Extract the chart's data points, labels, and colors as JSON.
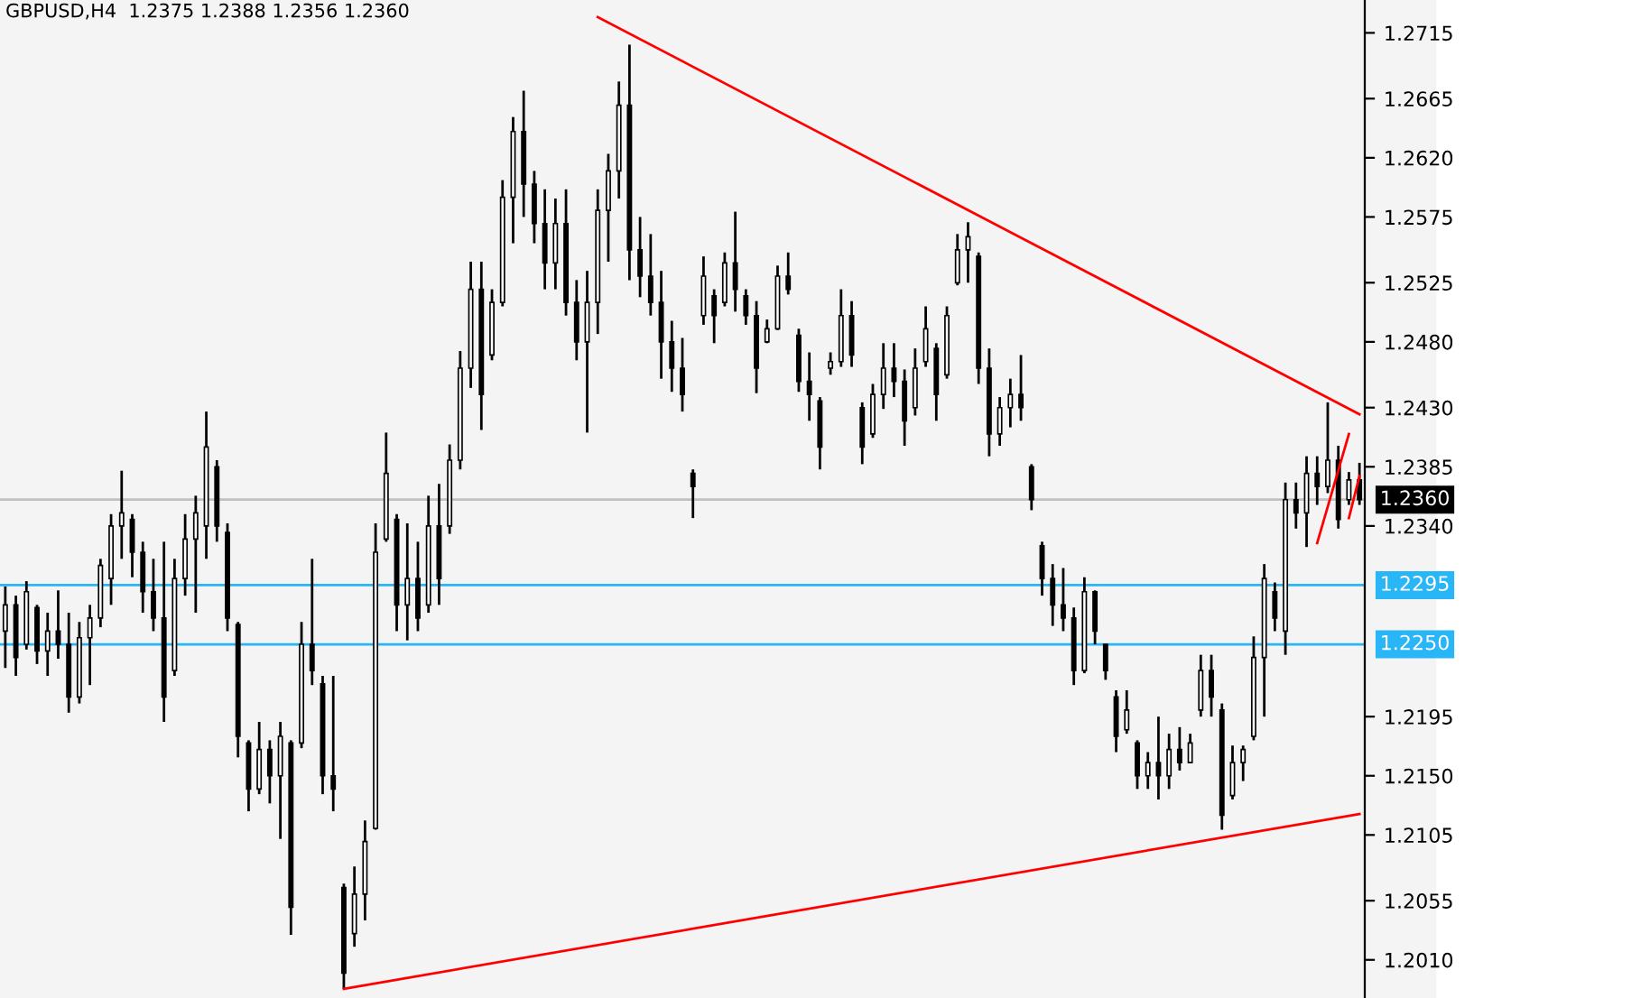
{
  "chart_data": {
    "type": "candlestick",
    "title": "GBPUSD,H4  1.2375 1.2388 1.2356 1.2360",
    "categories": [
      null,
      null,
      null,
      null,
      null,
      null,
      null,
      null,
      null,
      null,
      null,
      null,
      null,
      null,
      null,
      null,
      null,
      null,
      null,
      null,
      null,
      null,
      null,
      null,
      null,
      null,
      null,
      null,
      null,
      null,
      null,
      null,
      null,
      null,
      null,
      null,
      null,
      null,
      null,
      null,
      null,
      null,
      null,
      null,
      null,
      null,
      null,
      null,
      null,
      null,
      null,
      null,
      null,
      null,
      null,
      null,
      null,
      null,
      null,
      null,
      null,
      null,
      null,
      null,
      null,
      null,
      null,
      null,
      null,
      null,
      null,
      null,
      null,
      null,
      null,
      null,
      null,
      null,
      null,
      null,
      null,
      null,
      null,
      null,
      null,
      null,
      null,
      null,
      null,
      null,
      null,
      null,
      null,
      null,
      null,
      null,
      null,
      null,
      null,
      null,
      null,
      null,
      null,
      null,
      null,
      null,
      null,
      null,
      null,
      null,
      null,
      null,
      null,
      null,
      null,
      null,
      null,
      null,
      null,
      null,
      null,
      null,
      null,
      null,
      null,
      null,
      null,
      null,
      null
    ],
    "color": "#000000",
    "ohlc": [
      [
        1.226,
        1.2294,
        1.2232,
        1.228
      ],
      [
        1.228,
        1.2287,
        1.2226,
        1.224
      ],
      [
        1.225,
        1.2298,
        1.2246,
        1.229
      ],
      [
        1.2278,
        1.228,
        1.2235,
        1.2245
      ],
      [
        1.2245,
        1.2274,
        1.2226,
        1.226
      ],
      [
        1.226,
        1.2291,
        1.2239,
        1.225
      ],
      [
        1.225,
        1.2274,
        1.2198,
        1.221
      ],
      [
        1.221,
        1.2267,
        1.2205,
        1.2255
      ],
      [
        1.2255,
        1.228,
        1.2219,
        1.227
      ],
      [
        1.227,
        1.2315,
        1.2263,
        1.231
      ],
      [
        1.23,
        1.2349,
        1.228,
        1.234
      ],
      [
        1.234,
        1.2382,
        1.2315,
        1.235
      ],
      [
        1.2345,
        1.2349,
        1.2301,
        1.232
      ],
      [
        1.232,
        1.2328,
        1.2274,
        1.229
      ],
      [
        1.229,
        1.2315,
        1.226,
        1.227
      ],
      [
        1.227,
        1.2328,
        1.2191,
        1.221
      ],
      [
        1.223,
        1.2315,
        1.2226,
        1.23
      ],
      [
        1.23,
        1.2349,
        1.2287,
        1.233
      ],
      [
        1.233,
        1.2363,
        1.2274,
        1.235
      ],
      [
        1.234,
        1.2427,
        1.2315,
        1.24
      ],
      [
        1.2385,
        1.239,
        1.2328,
        1.234
      ],
      [
        1.2335,
        1.2342,
        1.226,
        1.227
      ],
      [
        1.2265,
        1.2267,
        1.2164,
        1.218
      ],
      [
        1.2175,
        1.2177,
        1.2123,
        1.214
      ],
      [
        1.214,
        1.2191,
        1.2136,
        1.217
      ],
      [
        1.217,
        1.2177,
        1.2129,
        1.215
      ],
      [
        1.215,
        1.2191,
        1.2102,
        1.218
      ],
      [
        1.2175,
        1.2177,
        1.2029,
        1.205
      ],
      [
        1.2175,
        1.2267,
        1.2171,
        1.225
      ],
      [
        1.225,
        1.2315,
        1.2219,
        1.223
      ],
      [
        1.222,
        1.2226,
        1.2136,
        1.215
      ],
      [
        1.215,
        1.2226,
        1.2123,
        1.214
      ],
      [
        1.2065,
        1.2068,
        1.1988,
        1.2
      ],
      [
        1.203,
        1.2081,
        1.202,
        1.206
      ],
      [
        1.206,
        1.2116,
        1.204,
        1.21
      ],
      [
        1.211,
        1.2342,
        1.2109,
        1.232
      ],
      [
        1.233,
        1.2411,
        1.2328,
        1.238
      ],
      [
        1.2345,
        1.2349,
        1.226,
        1.228
      ],
      [
        1.228,
        1.2342,
        1.2253,
        1.23
      ],
      [
        1.23,
        1.2328,
        1.226,
        1.227
      ],
      [
        1.228,
        1.2363,
        1.2274,
        1.234
      ],
      [
        1.234,
        1.2372,
        1.228,
        1.23
      ],
      [
        1.234,
        1.2402,
        1.2334,
        1.239
      ],
      [
        1.239,
        1.2473,
        1.2383,
        1.246
      ],
      [
        1.246,
        1.2541,
        1.2445,
        1.252
      ],
      [
        1.252,
        1.2541,
        1.2413,
        1.244
      ],
      [
        1.247,
        1.252,
        1.2466,
        1.251
      ],
      [
        1.251,
        1.2603,
        1.2507,
        1.259
      ],
      [
        1.259,
        1.2651,
        1.2555,
        1.264
      ],
      [
        1.264,
        1.2671,
        1.2575,
        1.26
      ],
      [
        1.26,
        1.261,
        1.2555,
        1.257
      ],
      [
        1.257,
        1.2596,
        1.252,
        1.254
      ],
      [
        1.254,
        1.2589,
        1.252,
        1.257
      ],
      [
        1.257,
        1.2596,
        1.25,
        1.251
      ],
      [
        1.251,
        1.2527,
        1.2466,
        1.248
      ],
      [
        1.248,
        1.2534,
        1.2411,
        1.251
      ],
      [
        1.251,
        1.2596,
        1.2486,
        1.258
      ],
      [
        1.258,
        1.2623,
        1.2541,
        1.261
      ],
      [
        1.261,
        1.2678,
        1.2589,
        1.266
      ],
      [
        1.266,
        1.2706,
        1.2527,
        1.255
      ],
      [
        1.255,
        1.2575,
        1.2514,
        1.253
      ],
      [
        1.253,
        1.2562,
        1.25,
        1.251
      ],
      [
        1.251,
        1.2534,
        1.2452,
        1.248
      ],
      [
        1.248,
        1.2496,
        1.2442,
        1.246
      ],
      [
        1.246,
        1.2483,
        1.2427,
        1.244
      ],
      [
        1.238,
        1.2383,
        1.2346,
        1.237
      ],
      [
        1.25,
        1.2545,
        1.2493,
        1.253
      ],
      [
        1.2515,
        1.252,
        1.2479,
        1.25
      ],
      [
        1.251,
        1.2548,
        1.2507,
        1.254
      ],
      [
        1.254,
        1.2579,
        1.2503,
        1.252
      ],
      [
        1.2515,
        1.252,
        1.2493,
        1.25
      ],
      [
        1.25,
        1.2511,
        1.2441,
        1.246
      ],
      [
        1.248,
        1.2497,
        1.2479,
        1.249
      ],
      [
        1.249,
        1.2538,
        1.2489,
        1.253
      ],
      [
        1.253,
        1.2548,
        1.2516,
        1.252
      ],
      [
        1.2485,
        1.249,
        1.2442,
        1.245
      ],
      [
        1.245,
        1.2472,
        1.242,
        1.244
      ],
      [
        1.2435,
        1.2438,
        1.2383,
        1.24
      ],
      [
        1.246,
        1.2472,
        1.2455,
        1.2465
      ],
      [
        1.2465,
        1.252,
        1.2461,
        1.25
      ],
      [
        1.25,
        1.2511,
        1.2461,
        1.247
      ],
      [
        1.243,
        1.2434,
        1.2387,
        1.24
      ],
      [
        1.241,
        1.2448,
        1.2407,
        1.244
      ],
      [
        1.244,
        1.2479,
        1.2429,
        1.246
      ],
      [
        1.246,
        1.2479,
        1.2438,
        1.245
      ],
      [
        1.245,
        1.2459,
        1.2401,
        1.242
      ],
      [
        1.243,
        1.2475,
        1.2424,
        1.246
      ],
      [
        1.2465,
        1.2507,
        1.2461,
        1.249
      ],
      [
        1.2475,
        1.2479,
        1.242,
        1.244
      ],
      [
        1.2455,
        1.2507,
        1.2452,
        1.25
      ],
      [
        1.2525,
        1.2562,
        1.2523,
        1.255
      ],
      [
        1.255,
        1.2571,
        1.2525,
        1.256
      ],
      [
        1.2545,
        1.2548,
        1.2448,
        1.246
      ],
      [
        1.246,
        1.2475,
        1.2393,
        1.241
      ],
      [
        1.241,
        1.2438,
        1.2401,
        1.243
      ],
      [
        1.243,
        1.2452,
        1.2415,
        1.244
      ],
      [
        1.244,
        1.247,
        1.242,
        1.243
      ],
      [
        1.2385,
        1.2387,
        1.2352,
        1.236
      ],
      [
        1.2325,
        1.2328,
        1.2287,
        1.23
      ],
      [
        1.23,
        1.2311,
        1.2264,
        1.228
      ],
      [
        1.228,
        1.2308,
        1.226,
        1.227
      ],
      [
        1.227,
        1.2278,
        1.2219,
        1.223
      ],
      [
        1.223,
        1.2301,
        1.2228,
        1.229
      ],
      [
        1.229,
        1.2291,
        1.225,
        1.226
      ],
      [
        1.225,
        1.225,
        1.2223,
        1.223
      ],
      [
        1.221,
        1.2215,
        1.2168,
        1.218
      ],
      [
        1.2185,
        1.2215,
        1.2182,
        1.22
      ],
      [
        1.2175,
        1.2177,
        1.214,
        1.215
      ],
      [
        1.215,
        1.2168,
        1.214,
        1.216
      ],
      [
        1.216,
        1.2195,
        1.2132,
        1.215
      ],
      [
        1.215,
        1.2182,
        1.214,
        1.217
      ],
      [
        1.217,
        1.2187,
        1.2154,
        1.216
      ],
      [
        1.216,
        1.2182,
        1.216,
        1.2175
      ],
      [
        1.22,
        1.2242,
        1.2195,
        1.223
      ],
      [
        1.223,
        1.2242,
        1.2195,
        1.221
      ],
      [
        1.22,
        1.2205,
        1.2109,
        1.212
      ],
      [
        1.2135,
        1.2173,
        1.2132,
        1.216
      ],
      [
        1.216,
        1.2173,
        1.2146,
        1.217
      ],
      [
        1.218,
        1.2256,
        1.2177,
        1.224
      ],
      [
        1.224,
        1.2311,
        1.2195,
        1.23
      ],
      [
        1.229,
        1.2297,
        1.226,
        1.227
      ],
      [
        1.226,
        1.2373,
        1.2242,
        1.236
      ],
      [
        1.236,
        1.2373,
        1.2338,
        1.235
      ],
      [
        1.235,
        1.2393,
        1.2324,
        1.238
      ],
      [
        1.238,
        1.2393,
        1.2356,
        1.237
      ],
      [
        1.237,
        1.2434,
        1.2365,
        1.239
      ],
      [
        1.239,
        1.2401,
        1.2338,
        1.2345
      ],
      [
        1.236,
        1.2381,
        1.2356,
        1.2375
      ],
      [
        1.2375,
        1.2388,
        1.2356,
        1.236
      ]
    ],
    "series": [
      {
        "type": "line",
        "color": "#ff0000",
        "values": [
          null,
          null,
          null,
          null,
          null,
          null,
          null,
          null,
          null,
          null,
          null,
          null,
          null,
          null,
          null,
          null,
          null,
          null,
          null,
          null,
          null,
          null,
          null,
          null,
          null,
          null,
          null,
          null,
          null,
          null,
          null,
          null,
          null,
          null,
          null,
          null,
          null,
          null,
          null,
          null,
          null,
          null,
          null,
          null,
          null,
          null,
          null,
          null,
          null,
          null,
          null,
          null,
          null,
          null,
          null,
          null,
          1.2727,
          null,
          null,
          null,
          null,
          null,
          null,
          null,
          null,
          null,
          null,
          null,
          null,
          null,
          null,
          null,
          null,
          null,
          null,
          null,
          null,
          null,
          null,
          null,
          null,
          null,
          null,
          null,
          null,
          null,
          null,
          null,
          null,
          null,
          null,
          null,
          null,
          null,
          null,
          null,
          null,
          null,
          null,
          null,
          null,
          null,
          null,
          null,
          null,
          null,
          null,
          null,
          null,
          null,
          null,
          null,
          null,
          null,
          null,
          null,
          null,
          null,
          null,
          null,
          null,
          null,
          null,
          null,
          null,
          null,
          null,
          null,
          1.2425
        ]
      },
      {
        "type": "line",
        "color": "#ff0000",
        "values": [
          null,
          null,
          null,
          null,
          null,
          null,
          null,
          null,
          null,
          null,
          null,
          null,
          null,
          null,
          null,
          null,
          null,
          null,
          null,
          null,
          null,
          null,
          null,
          null,
          null,
          null,
          null,
          null,
          null,
          null,
          null,
          null,
          1.1988,
          null,
          null,
          null,
          null,
          null,
          null,
          null,
          null,
          null,
          null,
          null,
          null,
          null,
          null,
          null,
          null,
          null,
          null,
          null,
          null,
          null,
          null,
          null,
          null,
          null,
          null,
          null,
          null,
          null,
          null,
          null,
          null,
          null,
          null,
          null,
          null,
          null,
          null,
          null,
          null,
          null,
          null,
          null,
          null,
          null,
          null,
          null,
          null,
          null,
          null,
          null,
          null,
          null,
          null,
          null,
          null,
          null,
          null,
          null,
          null,
          null,
          null,
          null,
          null,
          null,
          null,
          null,
          null,
          null,
          null,
          null,
          null,
          null,
          null,
          null,
          null,
          null,
          null,
          null,
          null,
          null,
          null,
          null,
          null,
          null,
          null,
          null,
          null,
          null,
          null,
          null,
          null,
          null,
          null,
          null,
          1.2121
        ]
      },
      {
        "type": "line",
        "color": "#ff0000",
        "values": [
          null,
          null,
          null,
          null,
          null,
          null,
          null,
          null,
          null,
          null,
          null,
          null,
          null,
          null,
          null,
          null,
          null,
          null,
          null,
          null,
          null,
          null,
          null,
          null,
          null,
          null,
          null,
          null,
          null,
          null,
          null,
          null,
          null,
          null,
          null,
          null,
          null,
          null,
          null,
          null,
          null,
          null,
          null,
          null,
          null,
          null,
          null,
          null,
          null,
          null,
          null,
          null,
          null,
          null,
          null,
          null,
          null,
          null,
          null,
          null,
          null,
          null,
          null,
          null,
          null,
          null,
          null,
          null,
          null,
          null,
          null,
          null,
          null,
          null,
          null,
          null,
          null,
          null,
          null,
          null,
          null,
          null,
          null,
          null,
          null,
          null,
          null,
          null,
          null,
          null,
          null,
          null,
          null,
          null,
          null,
          null,
          null,
          null,
          null,
          null,
          null,
          null,
          null,
          null,
          null,
          null,
          null,
          null,
          null,
          null,
          null,
          null,
          null,
          null,
          null,
          null,
          null,
          null,
          null,
          null,
          null,
          null,
          null,
          null,
          1.2327,
          null,
          null,
          1.241,
          null
        ]
      },
      {
        "type": "line",
        "color": "#ff0000",
        "values": [
          null,
          null,
          null,
          null,
          null,
          null,
          null,
          null,
          null,
          null,
          null,
          null,
          null,
          null,
          null,
          null,
          null,
          null,
          null,
          null,
          null,
          null,
          null,
          null,
          null,
          null,
          null,
          null,
          null,
          null,
          null,
          null,
          null,
          null,
          null,
          null,
          null,
          null,
          null,
          null,
          null,
          null,
          null,
          null,
          null,
          null,
          null,
          null,
          null,
          null,
          null,
          null,
          null,
          null,
          null,
          null,
          null,
          null,
          null,
          null,
          null,
          null,
          null,
          null,
          null,
          null,
          null,
          null,
          null,
          null,
          null,
          null,
          null,
          null,
          null,
          null,
          null,
          null,
          null,
          null,
          null,
          null,
          null,
          null,
          null,
          null,
          null,
          null,
          null,
          null,
          null,
          null,
          null,
          null,
          null,
          null,
          null,
          null,
          null,
          null,
          null,
          null,
          null,
          null,
          null,
          null,
          null,
          null,
          null,
          null,
          null,
          null,
          null,
          null,
          null,
          null,
          null,
          null,
          null,
          null,
          null,
          null,
          null,
          null,
          null,
          null,
          null,
          1.2346,
          1.2378
        ]
      }
    ],
    "ref_lines": [
      {
        "axis": "y",
        "value": 1.236,
        "label": "1.2360",
        "color": "#c0c0c0"
      },
      {
        "axis": "y",
        "value": 1.2295,
        "label": "1.2295",
        "color": "#29b6f6"
      },
      {
        "axis": "y",
        "value": 1.225,
        "label": "1.2250",
        "color": "#29b6f6"
      }
    ],
    "ylim": [
      1.1981,
      1.274
    ],
    "yticks": [
      {
        "value": 1.201,
        "label": "1.2010"
      },
      {
        "value": 1.2055,
        "label": "1.2055"
      },
      {
        "value": 1.2105,
        "label": "1.2105"
      },
      {
        "value": 1.215,
        "label": "1.2150"
      },
      {
        "value": 1.2195,
        "label": "1.2195"
      },
      {
        "value": 1.234,
        "label": "1.2340"
      },
      {
        "value": 1.2385,
        "label": "1.2385"
      },
      {
        "value": 1.243,
        "label": "1.2430"
      },
      {
        "value": 1.248,
        "label": "1.2480"
      },
      {
        "value": 1.2525,
        "label": "1.2525"
      },
      {
        "value": 1.2575,
        "label": "1.2575"
      },
      {
        "value": 1.262,
        "label": "1.2620"
      },
      {
        "value": 1.2665,
        "label": "1.2665"
      },
      {
        "value": 1.2715,
        "label": "1.2715"
      }
    ],
    "tick_labels": "y",
    "grid": false,
    "legend": false
  }
}
